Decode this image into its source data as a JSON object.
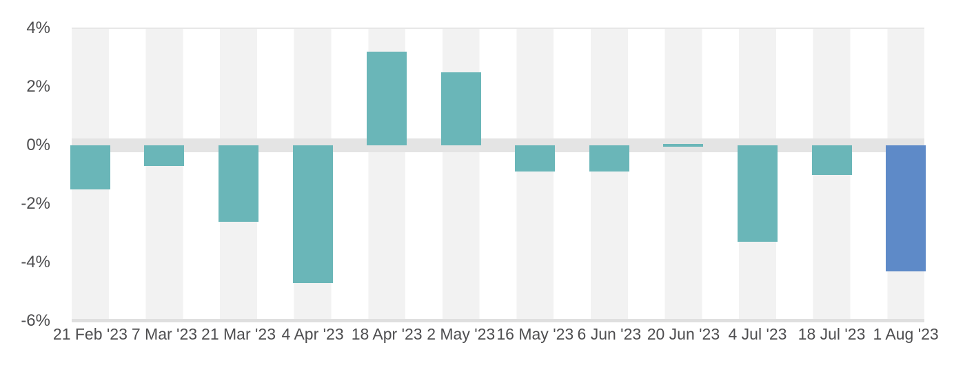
{
  "chart_data": {
    "type": "bar",
    "title": "",
    "xlabel": "",
    "ylabel": "",
    "categories": [
      "21 Feb '23",
      "7 Mar '23",
      "21 Mar '23",
      "4 Apr '23",
      "18 Apr '23",
      "2 May '23",
      "16 May '23",
      "6 Jun '23",
      "20 Jun '23",
      "4 Jul '23",
      "18 Jul '23",
      "1 Aug '23"
    ],
    "values": [
      -1.5,
      -0.7,
      -2.6,
      -4.7,
      3.2,
      2.5,
      -0.9,
      -0.9,
      -0.05,
      -3.3,
      -1.0,
      -4.3
    ],
    "value_unit": "%",
    "ylim": [
      -6,
      4
    ],
    "yticks": [
      4,
      2,
      0,
      -2,
      -4,
      -6
    ],
    "ytick_labels": [
      "4%",
      "2%",
      "0%",
      "-2%",
      "-4%",
      "-6%"
    ],
    "legend": "none",
    "grid": "alternating-column-bands",
    "highlight_index": 11
  },
  "colors": {
    "bar_default": "#6ab6b8",
    "bar_highlight": "#5e8ac8",
    "column_band": "#f2f2f2",
    "zero_band": "#e4e4e4",
    "axis_line": "#dfdfdf",
    "top_gridline": "#e7e7e7",
    "axis_text": "#4e4e50",
    "background": "#ffffff"
  }
}
